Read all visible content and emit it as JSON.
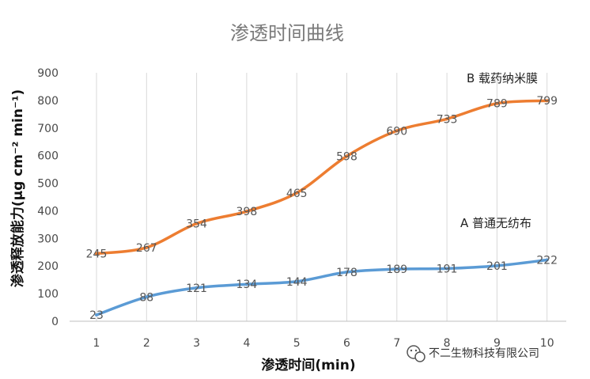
{
  "chart_data": {
    "type": "line",
    "title": "渗透时间曲线",
    "xlabel": "渗透时间(min)",
    "ylabel": "渗透释放能力(μg cm⁻² min⁻¹)",
    "x": [
      "1",
      "2",
      "3",
      "4",
      "5",
      "6",
      "7",
      "8",
      "9",
      "10"
    ],
    "y_ticks": [
      "0",
      "100",
      "200",
      "300",
      "400",
      "500",
      "600",
      "700",
      "800",
      "900"
    ],
    "ylim": [
      0,
      900
    ],
    "grid": "vertical",
    "series": [
      {
        "name": "B 载药纳米膜",
        "color": "#ed7d31",
        "values": [
          245,
          267,
          354,
          398,
          465,
          598,
          690,
          733,
          789,
          799
        ],
        "labels": [
          "245",
          "267",
          "354",
          "398",
          "465",
          "598",
          "690",
          "733",
          "789",
          "799"
        ]
      },
      {
        "name": "A 普通无纺布",
        "color": "#5b9bd5",
        "values": [
          23,
          88,
          121,
          134,
          144,
          178,
          189,
          191,
          201,
          222
        ],
        "labels": [
          "23",
          "88",
          "121",
          "134",
          "144",
          "178",
          "189",
          "191",
          "201",
          "222"
        ]
      }
    ]
  },
  "watermark": {
    "text": "不二生物科技有限公司",
    "icon": "wechat-icon"
  }
}
